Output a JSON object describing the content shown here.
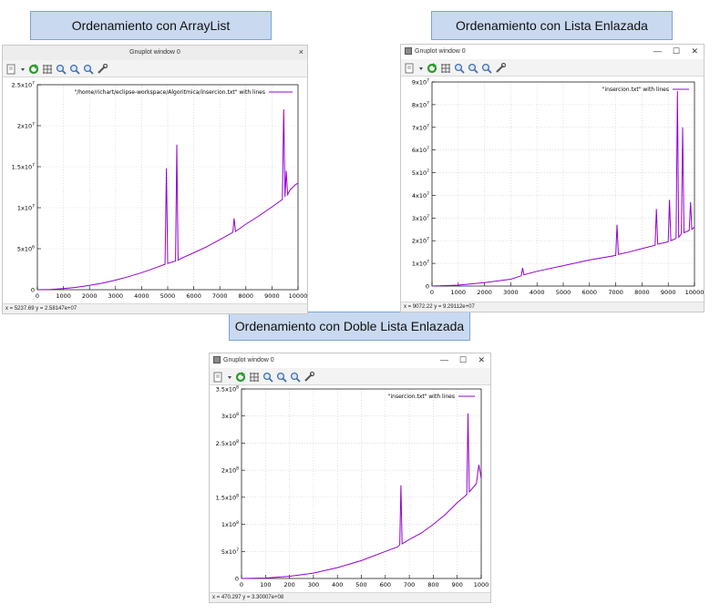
{
  "captions": {
    "arraylist": "Ordenamiento con ArrayList",
    "lista": "Ordenamiento con Lista Enlazada",
    "doble": "Ordenamiento con Doble Lista Enlazada"
  },
  "windows": [
    {
      "title": "Gnuplot window 0",
      "close_glyph": "×",
      "status": "x = 5237.69 y = 2.58147e+07"
    },
    {
      "title": "Gnuplot window 0",
      "min_glyph": "—",
      "max_glyph": "☐",
      "close_glyph": "✕",
      "status": "x = 9072.22 y = 9.29112e+07"
    },
    {
      "title": "Gnuplot window 0",
      "min_glyph": "—",
      "max_glyph": "☐",
      "close_glyph": "✕",
      "status": "x = 470.297 y = 3.30007e+08"
    }
  ],
  "toolbar_icons": [
    "copy-icon",
    "dropdown-icon",
    "replot-icon",
    "grid-icon",
    "zoom-previous-icon",
    "zoom-next-icon",
    "unzoom-icon",
    "settings-icon"
  ],
  "colors": {
    "series": "#9400d3",
    "caption_bg": "#c9d9f0",
    "caption_border": "#7ea2d2"
  },
  "chart_data": [
    {
      "type": "line",
      "title": "",
      "xlabel": "",
      "ylabel": "",
      "xlim": [
        0,
        10000
      ],
      "ylim": [
        0,
        25000000
      ],
      "xticks": [
        "0",
        "1000",
        "2000",
        "3000",
        "4000",
        "5000",
        "6000",
        "7000",
        "8000",
        "9000",
        "10000"
      ],
      "yticks": [
        {
          "mant": "0",
          "exp": ""
        },
        {
          "mant": "5x10",
          "exp": "6"
        },
        {
          "mant": "1x10",
          "exp": "7"
        },
        {
          "mant": "1.5x10",
          "exp": "7"
        },
        {
          "mant": "2x10",
          "exp": "7"
        },
        {
          "mant": "2.5x10",
          "exp": "7"
        }
      ],
      "legend_position": "top-right",
      "series": [
        {
          "name": "\"/home/richart/eclipse-workspace/Algoritmica/insercion.txt\" with lines",
          "x": [
            0,
            500,
            1000,
            1500,
            2000,
            2500,
            3000,
            3500,
            4000,
            4500,
            4900,
            4950,
            5000,
            5300,
            5350,
            5400,
            5500,
            6000,
            6500,
            7000,
            7500,
            7550,
            7600,
            8000,
            8500,
            9000,
            9400,
            9450,
            9500,
            9550,
            9600,
            9700,
            9800,
            9900,
            10000
          ],
          "y": [
            0,
            30000,
            130000,
            290000,
            520000,
            810000,
            1170000,
            1590000,
            2080000,
            2630000,
            3100000,
            14800000,
            3200000,
            3500000,
            17700000,
            3600000,
            3800000,
            4500000,
            5250000,
            6100000,
            7000000,
            8700000,
            7100000,
            8000000,
            9000000,
            10100000,
            11000000,
            22000000,
            11300000,
            14500000,
            11600000,
            12200000,
            12500000,
            12800000,
            13000000
          ]
        }
      ]
    },
    {
      "type": "line",
      "title": "",
      "xlabel": "",
      "ylabel": "",
      "xlim": [
        0,
        10000
      ],
      "ylim": [
        0,
        90000000
      ],
      "xticks": [
        "0",
        "1000",
        "2000",
        "3000",
        "4000",
        "5000",
        "6000",
        "7000",
        "8000",
        "9000",
        "10000"
      ],
      "yticks": [
        {
          "mant": "0",
          "exp": ""
        },
        {
          "mant": "1x10",
          "exp": "7"
        },
        {
          "mant": "2x10",
          "exp": "7"
        },
        {
          "mant": "3x10",
          "exp": "7"
        },
        {
          "mant": "4x10",
          "exp": "7"
        },
        {
          "mant": "5x10",
          "exp": "7"
        },
        {
          "mant": "6x10",
          "exp": "7"
        },
        {
          "mant": "7x10",
          "exp": "7"
        },
        {
          "mant": "8x10",
          "exp": "7"
        },
        {
          "mant": "9x10",
          "exp": "7"
        }
      ],
      "legend_position": "top-right",
      "series": [
        {
          "name": "\"insercion.txt\" with lines",
          "x": [
            0,
            1000,
            2000,
            3000,
            3400,
            3450,
            3500,
            4000,
            5000,
            6000,
            7000,
            7050,
            7100,
            7500,
            8000,
            8500,
            8550,
            8600,
            9000,
            9050,
            9100,
            9300,
            9350,
            9400,
            9500,
            9550,
            9600,
            9800,
            9850,
            9900,
            10000
          ],
          "y": [
            0,
            400000,
            1500000,
            3000000,
            4500000,
            8000000,
            5000000,
            6500000,
            9000000,
            11500000,
            13500000,
            27000000,
            14000000,
            15000000,
            16500000,
            18000000,
            34000000,
            18500000,
            19500000,
            38000000,
            20000000,
            21000000,
            86000000,
            21500000,
            23000000,
            70000000,
            23500000,
            24500000,
            37000000,
            25000000,
            26000000
          ]
        }
      ]
    },
    {
      "type": "line",
      "title": "",
      "xlabel": "",
      "ylabel": "",
      "xlim": [
        0,
        1000
      ],
      "ylim": [
        0,
        350000000
      ],
      "xticks": [
        "0",
        "100",
        "200",
        "300",
        "400",
        "500",
        "600",
        "700",
        "800",
        "900",
        "1000"
      ],
      "yticks": [
        {
          "mant": "0",
          "exp": ""
        },
        {
          "mant": "5x10",
          "exp": "7"
        },
        {
          "mant": "1x10",
          "exp": "8"
        },
        {
          "mant": "1.5x10",
          "exp": "8"
        },
        {
          "mant": "2x10",
          "exp": "8"
        },
        {
          "mant": "2.5x10",
          "exp": "8"
        },
        {
          "mant": "3x10",
          "exp": "8"
        },
        {
          "mant": "3.5x10",
          "exp": "8"
        }
      ],
      "legend_position": "top-right",
      "series": [
        {
          "name": "\"insercion.txt\" with lines",
          "x": [
            0,
            100,
            200,
            300,
            400,
            500,
            600,
            650,
            660,
            665,
            670,
            700,
            750,
            800,
            850,
            900,
            940,
            945,
            950,
            980,
            990,
            1000
          ],
          "y": [
            0,
            800000,
            4000000,
            10000000,
            20000000,
            33000000,
            50000000,
            58000000,
            62000000,
            172000000,
            64000000,
            72000000,
            84000000,
            100000000,
            118000000,
            140000000,
            155000000,
            305000000,
            160000000,
            175000000,
            210000000,
            185000000
          ]
        }
      ]
    }
  ]
}
